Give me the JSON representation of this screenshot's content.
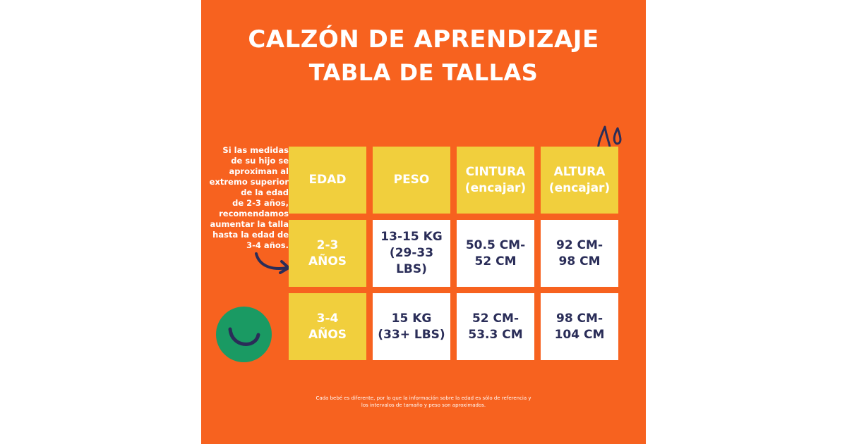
{
  "title": "CALZÓN DE APRENDIZAJE",
  "subtitle": "TABLA DE TALLAS",
  "side_note": "Si las medidas\nde su hijo se\naproximan al\nextremo superior\nde la edad\nde 2-3 años,\nrecomendamos\naumentar la talla\nhasta la edad de\n3-4 años.",
  "table": {
    "headers": [
      "EDAD",
      "PESO",
      "CINTURA\n(encajar)",
      "ALTURA\n(encajar)"
    ],
    "rows": [
      [
        "2-3\nAÑOS",
        "13-15 KG\n(29-33 LBS)",
        "50.5 CM-\n52 CM",
        "92 CM-\n98 CM"
      ],
      [
        "3-4\nAÑOS",
        "15 KG\n(33+ LBS)",
        "52 CM-\n53.3 CM",
        "98 CM-\n104 CM"
      ]
    ]
  },
  "footnote": "Cada bebé es diferente, por lo que la información sobre la edad es sólo de referencia y los intervalos de tamaño y peso son aproximados.",
  "colors": {
    "background": "#f7621f",
    "header_cell": "#f1cf3d",
    "value_cell": "#ffffff",
    "value_text": "#2a2d58",
    "accent_circle": "#1a9a63"
  },
  "icons": [
    "water-drops-icon",
    "curved-arrow-icon",
    "smile-circle-icon"
  ]
}
